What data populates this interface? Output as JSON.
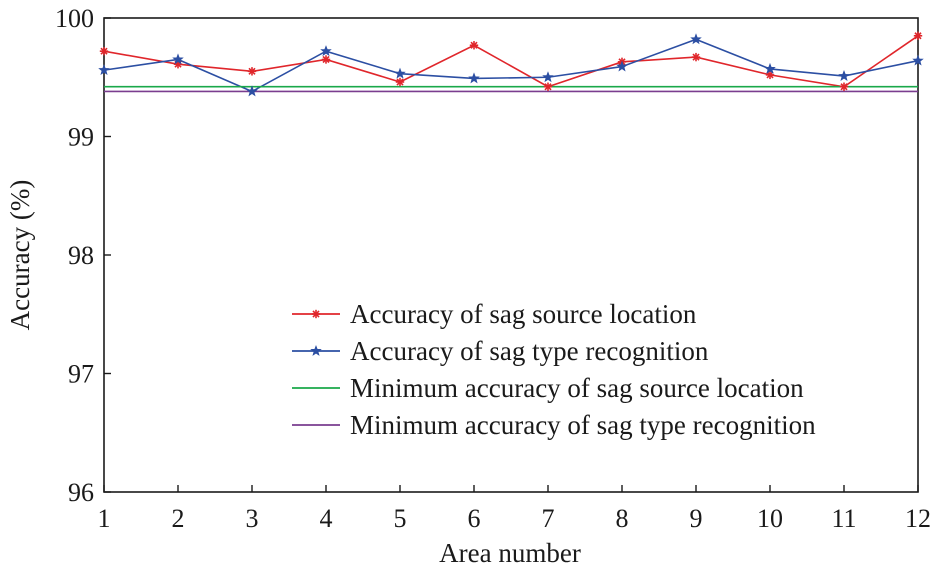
{
  "chart_data": {
    "type": "line",
    "title": "",
    "xlabel": "Area number",
    "ylabel": "Accuracy (%)",
    "x": [
      1,
      2,
      3,
      4,
      5,
      6,
      7,
      8,
      9,
      10,
      11,
      12
    ],
    "xticks": [
      "1",
      "2",
      "3",
      "4",
      "5",
      "6",
      "7",
      "8",
      "9",
      "10",
      "11",
      "12"
    ],
    "xlim": [
      1,
      12
    ],
    "ylim": [
      96,
      100
    ],
    "yticks": [
      "96",
      "97",
      "98",
      "99",
      "100"
    ],
    "grid": false,
    "legend_position": "lower-right",
    "series": [
      {
        "name": "Accuracy of sag source location",
        "color": "#e0262b",
        "marker": "asterisk",
        "values": [
          99.72,
          99.61,
          99.55,
          99.65,
          99.46,
          99.77,
          99.42,
          99.63,
          99.67,
          99.52,
          99.42,
          99.85
        ]
      },
      {
        "name": "Accuracy of sag type recognition",
        "color": "#2c4fa3",
        "marker": "star",
        "values": [
          99.56,
          99.65,
          99.38,
          99.72,
          99.53,
          99.49,
          99.5,
          99.59,
          99.82,
          99.57,
          99.51,
          99.64
        ]
      },
      {
        "name": "Minimum accuracy of sag source location",
        "color": "#1aa84a",
        "marker": "none",
        "values": [
          99.42,
          99.42,
          99.42,
          99.42,
          99.42,
          99.42,
          99.42,
          99.42,
          99.42,
          99.42,
          99.42,
          99.42
        ]
      },
      {
        "name": "Minimum accuracy of sag type recognition",
        "color": "#7a3d8f",
        "marker": "none",
        "values": [
          99.38,
          99.38,
          99.38,
          99.38,
          99.38,
          99.38,
          99.38,
          99.38,
          99.38,
          99.38,
          99.38,
          99.38
        ]
      }
    ]
  }
}
